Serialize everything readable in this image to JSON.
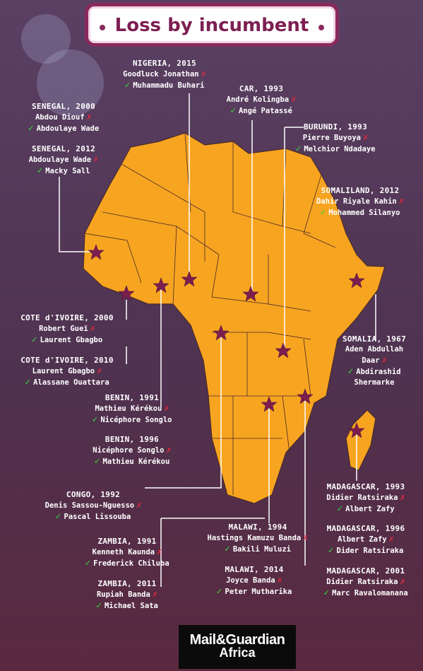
{
  "title": "Loss by incumbent",
  "colors": {
    "map": "#f7a420",
    "star": "#7b1e4e",
    "check": "#3ad13a",
    "cross": "#e8283a",
    "title": "#7d1f52"
  },
  "icons": {
    "winner": "check-icon",
    "loser": "cross-icon",
    "marker": "star-icon"
  },
  "entries": {
    "nigeria": {
      "head": "NIGERIA, 2015",
      "loser": "Goodluck Jonathan",
      "winner": "Muhammadu Buhari"
    },
    "car": {
      "head": "CAR, 1993",
      "loser": "André Kolingba",
      "winner": "Angé Patassé"
    },
    "senegal2000": {
      "head": "SENEGAL, 2000",
      "loser": "Abdou Diouf",
      "winner": "Abdoulaye Wade"
    },
    "senegal2012": {
      "head": "SENEGAL, 2012",
      "loser": "Abdoulaye Wade",
      "winner": "Macky Sall"
    },
    "burundi": {
      "head": "BURUNDI, 1993",
      "loser": "Pierre Buyoya",
      "winner": "Melchior Ndadaye"
    },
    "somaliland": {
      "head": "SOMALILAND, 2012",
      "loser": "Dahir Riyale Kahin",
      "winner": "Mohammed Silanyo"
    },
    "civ2000": {
      "head": "COTE d'IVOIRE, 2000",
      "loser": "Robert Gueï",
      "winner": "Laurent Gbagbo"
    },
    "civ2010": {
      "head": "COTE d'IVOIRE, 2010",
      "loser": "Laurent Gbagbo",
      "winner": "Alassane Ouattara"
    },
    "somalia": {
      "head": "SOMALIA, 1967",
      "loser_line1": "Aden Abdullah",
      "loser_line2": "Daar",
      "winner_line1": "Abdirashid",
      "winner_line2": "Shermarke"
    },
    "benin1991": {
      "head": "BENIN, 1991",
      "loser": "Mathieu Kérékou",
      "winner": "Nicéphore Songlo"
    },
    "benin1996": {
      "head": "BENIN, 1996",
      "loser": "Nicéphore Songlo",
      "winner": "Mathieu Kérékou"
    },
    "congo": {
      "head": "CONGO, 1992",
      "loser": "Denis Sassou-Nguesso",
      "winner": "Pascal Lissouba"
    },
    "madagascar1993": {
      "head": "MADAGASCAR, 1993",
      "loser": "Didier Ratsiraka",
      "winner": "Albert Zafy"
    },
    "madagascar1996": {
      "head": "MADAGASCAR, 1996",
      "loser": "Albert Zafy",
      "winner": "Dider Ratsiraka"
    },
    "madagascar2001": {
      "head": "MADAGASCAR, 2001",
      "loser": "Didier Ratsiraka",
      "winner": "Marc Ravalomanana"
    },
    "malawi1994": {
      "head": "MALAWI, 1994",
      "loser": "Hastings Kamuzu Banda",
      "winner": "Bakili Muluzi"
    },
    "malawi2014": {
      "head": "MALAWI, 2014",
      "loser": "Joyce Banda",
      "winner": "Peter Mutharika"
    },
    "zambia1991": {
      "head": "ZAMBIA, 1991",
      "loser": "Kenneth Kaunda",
      "winner": "Frederick Chiluba"
    },
    "zambia2011": {
      "head": "ZAMBIA, 2011",
      "loser": "Rupiah Banda",
      "winner": "Michael Sata"
    }
  },
  "logo": {
    "line1": "Mail&Guardian",
    "line2": "Africa"
  }
}
